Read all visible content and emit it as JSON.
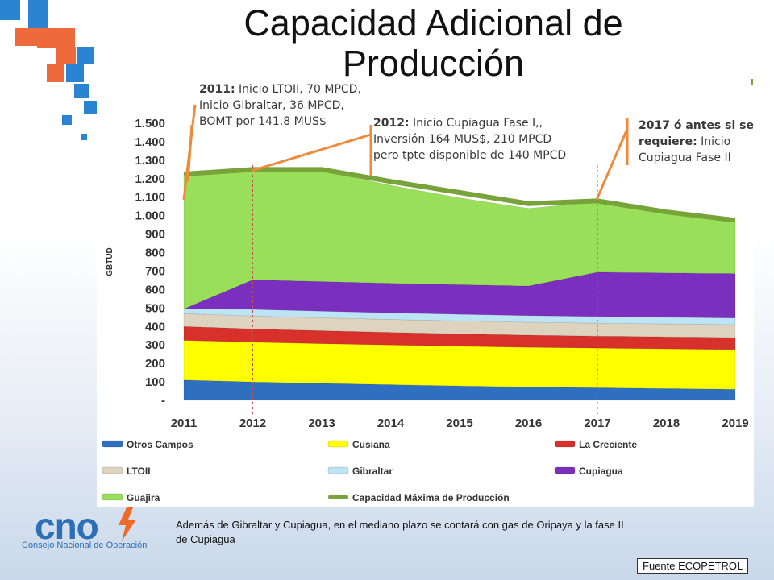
{
  "title": "Capacidad Adicional de Producción",
  "callouts": {
    "c2011": {
      "bold": "2011:",
      "text": " Inicio LTOII, 70 MPCD,  Inicio Gibraltar, 36  MPCD, BOMT por 141.8 MUS$"
    },
    "c2012": {
      "bold": "2012:",
      "text": " Inicio Cupiagua Fase I,, Inversión 164 MUS$, 210 MPCD pero tpte disponible de 140 MPCD"
    },
    "c2017": {
      "bold": "2017 ó antes si se requiere:",
      "text": " Inicio Cupiagua Fase II"
    }
  },
  "chart_data": {
    "type": "area",
    "ylabel": "GBTUD",
    "xlabel": "",
    "ylim": [
      0,
      1500
    ],
    "yticks": [
      "1.500",
      "1.400",
      "1.300",
      "1.200",
      "1.100",
      "1.000",
      "900",
      "800",
      "700",
      "600",
      "500",
      "400",
      "300",
      "200",
      "100",
      "-"
    ],
    "categories": [
      "2011",
      "2012",
      "2013",
      "2014",
      "2015",
      "2016",
      "2017",
      "2018",
      "2019"
    ],
    "series": [
      {
        "name": "Otros Campos",
        "color": "#2f6fc0",
        "values": [
          110,
          100,
          92,
          85,
          78,
          72,
          68,
          64,
          60
        ]
      },
      {
        "name": "Cusiana",
        "color": "#ffff00",
        "values": [
          215,
          215,
          215,
          215,
          215,
          215,
          215,
          215,
          215
        ]
      },
      {
        "name": "La Creciente",
        "color": "#d8302a",
        "values": [
          75,
          72,
          70,
          68,
          67,
          66,
          65,
          65,
          65
        ]
      },
      {
        "name": "LTOII",
        "color": "#ddd3be",
        "values": [
          70,
          70,
          70,
          70,
          70,
          70,
          70,
          70,
          70
        ]
      },
      {
        "name": "Gibraltar",
        "color": "#bde4f4",
        "values": [
          25,
          36,
          36,
          36,
          36,
          36,
          36,
          36,
          36
        ]
      },
      {
        "name": "Cupiagua",
        "color": "#7b2fbe",
        "values": [
          0,
          160,
          160,
          160,
          160,
          160,
          240,
          240,
          240
        ]
      },
      {
        "name": "Guajira",
        "color": "#99df59",
        "values": [
          730,
          600,
          600,
          530,
          470,
          420,
          380,
          330,
          285
        ]
      },
      {
        "name": "Capacidad Máxima de Producción",
        "color": "#78a33a",
        "type": "line",
        "values": [
          1225,
          1250,
          1250,
          1185,
          1125,
          1065,
          1080,
          1020,
          975
        ]
      }
    ],
    "legend_position": "bottom"
  },
  "logo": {
    "word": "cno",
    "subtitle": "Consejo Nacional de Operación"
  },
  "note": "Además de Gibraltar y Cupiagua, en el mediano plazo se contará con gas de Oripaya y la fase II de Cupiagua",
  "source": "Fuente ECOPETROL",
  "colors": {
    "orange": "#ef8a3a",
    "blue": "#1f7ec8"
  }
}
